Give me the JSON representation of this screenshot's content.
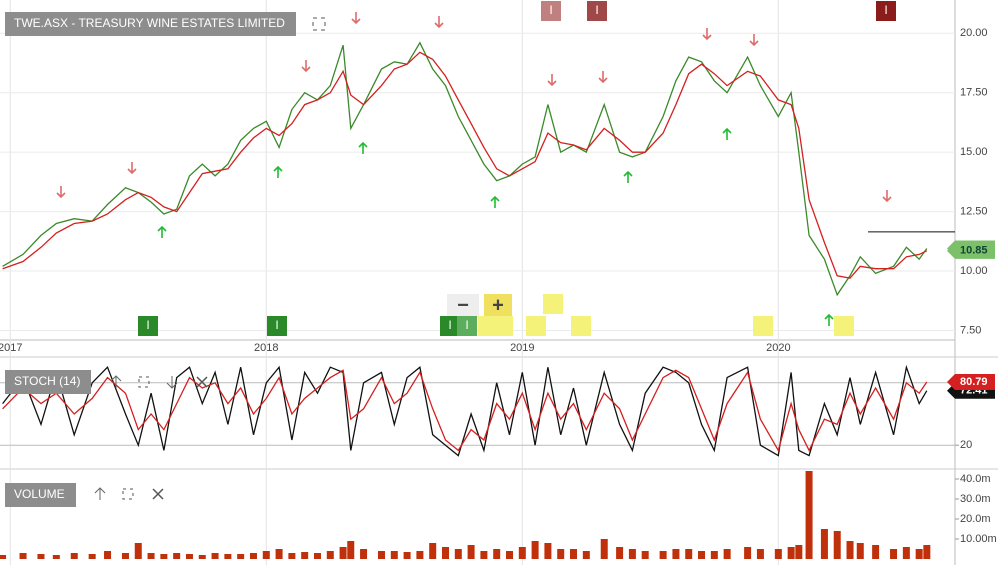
{
  "chart_data": [
    {
      "type": "line",
      "title": "TWE.ASX - TREASURY WINE ESTATES LIMITED",
      "x": [
        2016.97,
        2017.05,
        2017.12,
        2017.18,
        2017.25,
        2017.32,
        2017.38,
        2017.45,
        2017.5,
        2017.55,
        2017.6,
        2017.65,
        2017.7,
        2017.75,
        2017.8,
        2017.85,
        2017.9,
        2017.95,
        2018.0,
        2018.05,
        2018.1,
        2018.15,
        2018.2,
        2018.25,
        2018.3,
        2018.33,
        2018.38,
        2018.45,
        2018.5,
        2018.55,
        2018.6,
        2018.65,
        2018.7,
        2018.75,
        2018.8,
        2018.85,
        2018.9,
        2018.95,
        2019.0,
        2019.05,
        2019.1,
        2019.15,
        2019.2,
        2019.25,
        2019.32,
        2019.38,
        2019.43,
        2019.48,
        2019.55,
        2019.6,
        2019.65,
        2019.7,
        2019.75,
        2019.8,
        2019.88,
        2019.93,
        2020.0,
        2020.05,
        2020.08,
        2020.12,
        2020.18,
        2020.23,
        2020.28,
        2020.32,
        2020.38,
        2020.45,
        2020.5,
        2020.55,
        2020.58
      ],
      "series": [
        {
          "color": "#3a8a2a",
          "values": [
            10.2,
            10.7,
            11.5,
            12.0,
            12.2,
            12.1,
            12.8,
            13.5,
            13.3,
            12.9,
            12.4,
            12.6,
            14.0,
            14.5,
            14.0,
            14.5,
            15.5,
            16.0,
            16.3,
            15.2,
            16.8,
            17.5,
            17.2,
            17.8,
            19.5,
            16.0,
            17.0,
            18.5,
            18.8,
            18.7,
            19.6,
            18.5,
            17.8,
            16.5,
            15.5,
            14.5,
            13.8,
            14.0,
            14.5,
            14.8,
            17.0,
            15.0,
            15.3,
            15.0,
            17.0,
            15.0,
            14.8,
            15.0,
            16.5,
            18.0,
            19.0,
            18.8,
            18.0,
            17.5,
            19.0,
            17.8,
            16.5,
            17.5,
            15.0,
            11.5,
            10.5,
            9.0,
            9.8,
            10.6,
            9.9,
            10.2,
            11.0,
            10.5,
            10.95
          ]
        },
        {
          "color": "#d42020",
          "values": [
            10.1,
            10.4,
            11.0,
            11.6,
            12.0,
            12.1,
            12.4,
            13.0,
            13.3,
            13.1,
            12.7,
            12.5,
            13.3,
            14.1,
            14.2,
            14.3,
            15.0,
            15.6,
            16.0,
            15.7,
            16.2,
            17.0,
            17.2,
            17.5,
            18.4,
            17.4,
            17.0,
            17.8,
            18.5,
            18.7,
            19.2,
            18.9,
            18.2,
            17.2,
            16.2,
            15.2,
            14.3,
            14.0,
            14.3,
            14.6,
            15.8,
            15.4,
            15.3,
            15.1,
            16.0,
            15.5,
            15.0,
            15.0,
            15.8,
            17.0,
            18.3,
            18.7,
            18.3,
            17.8,
            18.4,
            18.2,
            17.2,
            17.0,
            16.0,
            13.0,
            11.2,
            9.8,
            9.7,
            10.2,
            10.1,
            10.1,
            10.6,
            10.7,
            10.85
          ]
        }
      ],
      "hline": 11.65,
      "xlim": [
        2016.96,
        2020.69
      ],
      "xticks": [
        2017,
        2018,
        2019,
        2020
      ],
      "ylim": [
        7.1,
        21.4
      ],
      "yticks": [
        {
          "value": 7.5,
          "label": "7.50"
        },
        {
          "value": 10,
          "label": "10.00"
        },
        {
          "value": 12.5,
          "label": "12.50"
        },
        {
          "value": 15,
          "label": "15.00"
        },
        {
          "value": 17.5,
          "label": "17.50"
        },
        {
          "value": 20,
          "label": "20.00"
        }
      ],
      "grid": true,
      "event_labels": [
        "I",
        "I",
        "I",
        "I",
        "I",
        "I",
        "I"
      ],
      "zoom_labels": [
        "−",
        "+"
      ]
    },
    {
      "type": "line",
      "title": "STOCH (14)",
      "x": [
        2016.97,
        2017.05,
        2017.12,
        2017.18,
        2017.25,
        2017.32,
        2017.38,
        2017.45,
        2017.5,
        2017.55,
        2017.6,
        2017.65,
        2017.7,
        2017.75,
        2017.8,
        2017.85,
        2017.9,
        2017.95,
        2018.0,
        2018.05,
        2018.1,
        2018.15,
        2018.2,
        2018.25,
        2018.3,
        2018.33,
        2018.38,
        2018.45,
        2018.5,
        2018.55,
        2018.6,
        2018.65,
        2018.7,
        2018.75,
        2018.8,
        2018.85,
        2018.9,
        2018.95,
        2019.0,
        2019.05,
        2019.1,
        2019.15,
        2019.2,
        2019.25,
        2019.32,
        2019.38,
        2019.43,
        2019.48,
        2019.55,
        2019.6,
        2019.65,
        2019.7,
        2019.75,
        2019.8,
        2019.88,
        2019.93,
        2020.0,
        2020.05,
        2020.08,
        2020.12,
        2020.18,
        2020.23,
        2020.28,
        2020.32,
        2020.38,
        2020.45,
        2020.5,
        2020.55,
        2020.58
      ],
      "series": [
        {
          "color": "#111111",
          "values": [
            60,
            85,
            40,
            90,
            30,
            80,
            95,
            50,
            20,
            70,
            15,
            85,
            95,
            60,
            90,
            40,
            95,
            30,
            80,
            95,
            25,
            90,
            70,
            95,
            90,
            15,
            80,
            90,
            40,
            85,
            95,
            30,
            20,
            10,
            50,
            15,
            80,
            30,
            90,
            20,
            95,
            30,
            75,
            20,
            90,
            40,
            15,
            70,
            95,
            90,
            80,
            40,
            15,
            85,
            95,
            20,
            10,
            90,
            15,
            10,
            60,
            30,
            85,
            40,
            90,
            30,
            95,
            60,
            72.41
          ]
        },
        {
          "color": "#d42020",
          "values": [
            55,
            75,
            60,
            70,
            50,
            65,
            85,
            70,
            35,
            50,
            35,
            60,
            85,
            75,
            80,
            60,
            75,
            50,
            65,
            85,
            50,
            65,
            75,
            85,
            92,
            45,
            55,
            85,
            60,
            70,
            90,
            55,
            25,
            15,
            35,
            25,
            60,
            45,
            70,
            35,
            70,
            45,
            60,
            35,
            70,
            55,
            25,
            50,
            85,
            92,
            85,
            55,
            25,
            60,
            90,
            45,
            15,
            60,
            35,
            15,
            45,
            40,
            70,
            50,
            75,
            45,
            80,
            70,
            80.79
          ]
        }
      ],
      "xlim": [
        2016.96,
        2020.69
      ],
      "ylim": [
        0,
        100
      ],
      "yticks": [
        20
      ],
      "levels": [
        20,
        80
      ]
    },
    {
      "type": "bar",
      "title": "VOLUME",
      "x": [
        2016.97,
        2017.05,
        2017.12,
        2017.18,
        2017.25,
        2017.32,
        2017.38,
        2017.45,
        2017.5,
        2017.55,
        2017.6,
        2017.65,
        2017.7,
        2017.75,
        2017.8,
        2017.85,
        2017.9,
        2017.95,
        2018.0,
        2018.05,
        2018.1,
        2018.15,
        2018.2,
        2018.25,
        2018.3,
        2018.33,
        2018.38,
        2018.45,
        2018.5,
        2018.55,
        2018.6,
        2018.65,
        2018.7,
        2018.75,
        2018.8,
        2018.85,
        2018.9,
        2018.95,
        2019.0,
        2019.05,
        2019.1,
        2019.15,
        2019.2,
        2019.25,
        2019.32,
        2019.38,
        2019.43,
        2019.48,
        2019.55,
        2019.6,
        2019.65,
        2019.7,
        2019.75,
        2019.8,
        2019.88,
        2019.93,
        2020.0,
        2020.05,
        2020.08,
        2020.12,
        2020.18,
        2020.23,
        2020.28,
        2020.32,
        2020.38,
        2020.45,
        2020.5,
        2020.55,
        2020.58
      ],
      "values": [
        2000000,
        3000000,
        2500000,
        2000000,
        3000000,
        2500000,
        4000000,
        3000000,
        8000000,
        3000000,
        2500000,
        3000000,
        2500000,
        2000000,
        3000000,
        2500000,
        2500000,
        3000000,
        4000000,
        5000000,
        3000000,
        3500000,
        3000000,
        4000000,
        6000000,
        9000000,
        5000000,
        4000000,
        4000000,
        3500000,
        4000000,
        8000000,
        6000000,
        5000000,
        7000000,
        4000000,
        5000000,
        4000000,
        6000000,
        9000000,
        8000000,
        5000000,
        5000000,
        4000000,
        10000000,
        6000000,
        5000000,
        4000000,
        4000000,
        5000000,
        5000000,
        4000000,
        4000000,
        5000000,
        6000000,
        5000000,
        5000000,
        6000000,
        7000000,
        44000000,
        15000000,
        14000000,
        9000000,
        8000000,
        7000000,
        5000000,
        6000000,
        5000000,
        7000000
      ],
      "color": "#c0300a",
      "xlim": [
        2016.96,
        2020.69
      ],
      "ylim": [
        0,
        44000000
      ],
      "yticks": [
        {
          "value": 10000000,
          "label": "10.00m"
        },
        {
          "value": 20000000,
          "label": "20.0m"
        },
        {
          "value": 30000000,
          "label": "30.0m"
        },
        {
          "value": 40000000,
          "label": "40.0m"
        }
      ]
    }
  ]
}
